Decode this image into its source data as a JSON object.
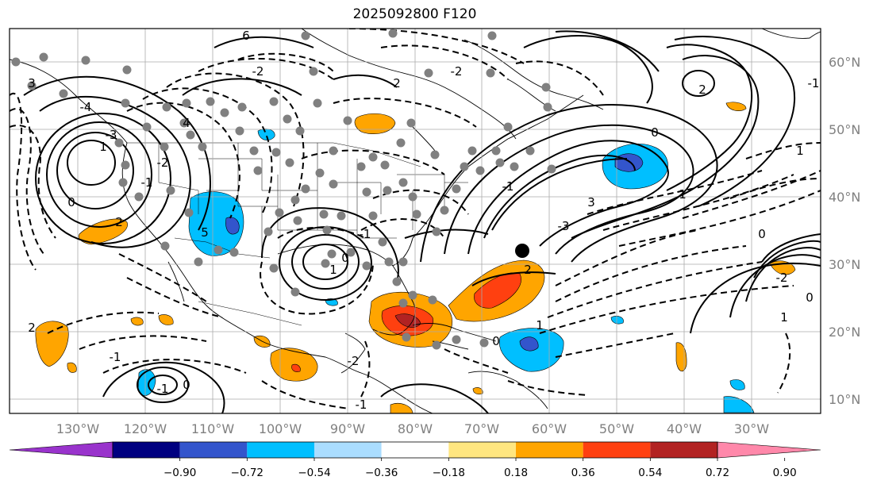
{
  "title": "2025092800 F120",
  "map": {
    "lon_ticks": [
      "130°W",
      "120°W",
      "110°W",
      "100°W",
      "90°W",
      "80°W",
      "70°W",
      "60°W",
      "50°W",
      "40°W",
      "30°W"
    ],
    "lat_ticks": [
      "60°N",
      "50°N",
      "40°N",
      "30°N",
      "20°N",
      "10°N"
    ],
    "grid": true,
    "gridline_color": "#aaaaaa",
    "contour_labels": [
      "-4",
      "-3",
      "-2",
      "-1",
      "0",
      "1",
      "2",
      "3",
      "4",
      "5",
      "6",
      "-2",
      "-1",
      "0",
      "1",
      "2",
      "3",
      "-3",
      "-2",
      "-1",
      "0",
      "1",
      "2",
      "1",
      "0",
      "-1",
      "-2",
      "0",
      "1",
      "2",
      "-1",
      "0",
      "-1",
      "-2",
      "-1",
      "0",
      "1",
      "2"
    ]
  },
  "colorbar": {
    "ticks": [
      "−0.90",
      "−0.72",
      "−0.54",
      "−0.36",
      "−0.18",
      "0.18",
      "0.36",
      "0.54",
      "0.72",
      "0.90"
    ],
    "colors": [
      "#9933cc",
      "#000080",
      "#3355cc",
      "#00bfff",
      "#aaddff",
      "#ffffff",
      "#ffe680",
      "#ffa500",
      "#ff4010",
      "#b22222",
      "#ff88aa"
    ]
  }
}
